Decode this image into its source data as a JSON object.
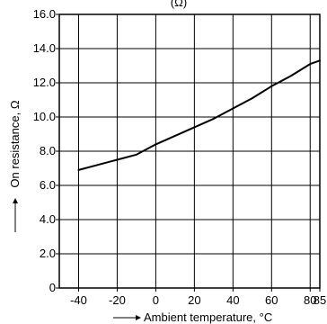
{
  "chart_data": {
    "type": "line",
    "title": "(Ω)",
    "xlabel": "Ambient temperature, °C",
    "ylabel": "On resistance, Ω",
    "xlim": [
      -50,
      85
    ],
    "ylim": [
      0,
      16
    ],
    "x_ticks": [
      -40,
      -20,
      0,
      20,
      40,
      60,
      80,
      85
    ],
    "x_tick_labels": [
      "-40",
      "-20",
      "0",
      "20",
      "40",
      "60",
      "80",
      "85"
    ],
    "y_ticks": [
      0,
      2,
      4,
      6,
      8,
      10,
      12,
      14,
      16
    ],
    "y_tick_labels": [
      "0",
      "2.0",
      "4.0",
      "6.0",
      "8.0",
      "10.0",
      "12.0",
      "14.0",
      "16.0"
    ],
    "grid": true,
    "series": [
      {
        "x": [
          -40,
          -30,
          -20,
          -10,
          0,
          10,
          20,
          30,
          40,
          50,
          60,
          70,
          80,
          85
        ],
        "y": [
          6.9,
          7.2,
          7.5,
          7.8,
          8.4,
          8.9,
          9.4,
          9.9,
          10.5,
          11.1,
          11.8,
          12.4,
          13.1,
          13.3
        ]
      }
    ],
    "colors": {
      "line": "#000000",
      "grid": "#000000",
      "background": "#ffffff"
    }
  }
}
